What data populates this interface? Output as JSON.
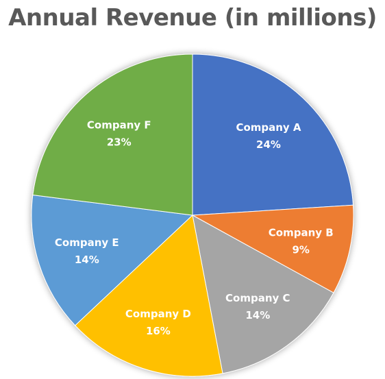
{
  "chart_data": {
    "type": "pie",
    "title": "Annual Revenue (in millions)",
    "slices": [
      {
        "label": "Company A",
        "value": 24,
        "value_label": "24%",
        "color": "#4472C4"
      },
      {
        "label": "Company B",
        "value": 9,
        "value_label": "9%",
        "color": "#ED7D31"
      },
      {
        "label": "Company C",
        "value": 14,
        "value_label": "14%",
        "color": "#A5A5A5"
      },
      {
        "label": "Company D",
        "value": 16,
        "value_label": "16%",
        "color": "#FFC000"
      },
      {
        "label": "Company E",
        "value": 14,
        "value_label": "14%",
        "color": "#5B9BD5"
      },
      {
        "label": "Company F",
        "value": 23,
        "value_label": "23%",
        "color": "#70AD47"
      }
    ],
    "start_angle": "12 o'clock",
    "direction": "clockwise",
    "legend": "none",
    "data_labels": "inside"
  }
}
